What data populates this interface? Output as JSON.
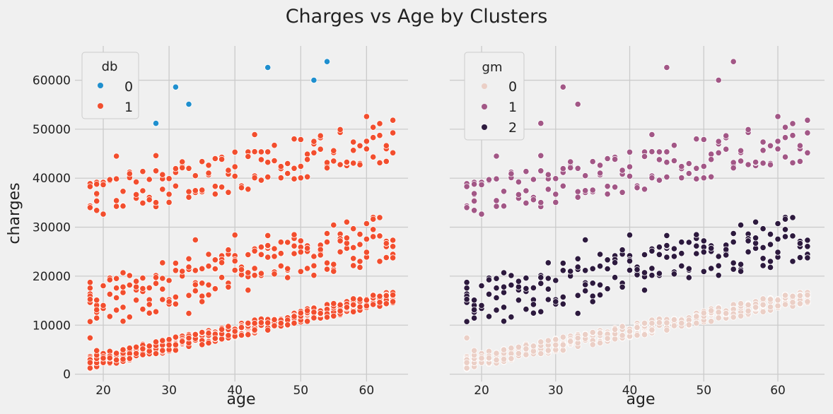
{
  "figure": {
    "title": "Charges vs Age by Clusters"
  },
  "chart_data": [
    {
      "type": "scatter",
      "xlabel": "age",
      "ylabel": "charges",
      "xlim": [
        15.7,
        66.3
      ],
      "ylim": [
        -1500,
        67000
      ],
      "xticks": [
        20,
        30,
        40,
        50,
        60
      ],
      "yticks": [
        0,
        10000,
        20000,
        30000,
        40000,
        50000,
        60000
      ],
      "grid": true,
      "legend": {
        "title": "db",
        "placement": "top-left",
        "entries": [
          "0",
          "1"
        ]
      },
      "series": [
        {
          "name": "0",
          "color": "#1f8fce",
          "points": [
            [
              28,
              51200
            ],
            [
              31,
              58600
            ],
            [
              33,
              55100
            ],
            [
              45,
              62600
            ],
            [
              52,
              60000
            ],
            [
              54,
              63800
            ]
          ]
        },
        {
          "name": "1",
          "color": "#f24e2e",
          "points": []
        }
      ]
    },
    {
      "type": "scatter",
      "xlabel": "age",
      "ylabel": "",
      "xlim": [
        15.7,
        66.3
      ],
      "ylim": [
        -1500,
        67000
      ],
      "xticks": [
        20,
        30,
        40,
        50,
        60
      ],
      "yticks": [
        0,
        10000,
        20000,
        30000,
        40000,
        50000,
        60000
      ],
      "grid": true,
      "legend": {
        "title": "gm",
        "placement": "top-left",
        "entries": [
          "0",
          "1",
          "2"
        ]
      },
      "series": [
        {
          "name": "0",
          "color": "#ebcfc6",
          "points": []
        },
        {
          "name": "1",
          "color": "#a25786",
          "points": [
            [
              28,
              51200
            ],
            [
              31,
              58600
            ],
            [
              33,
              55100
            ],
            [
              45,
              62600
            ],
            [
              52,
              60000
            ],
            [
              54,
              63800
            ]
          ]
        },
        {
          "name": "2",
          "color": "#2d1a3e",
          "points": []
        }
      ]
    }
  ]
}
